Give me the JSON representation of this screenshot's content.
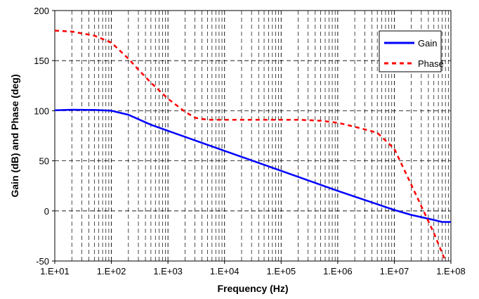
{
  "chart_data": {
    "type": "line",
    "title": "",
    "xlabel": "Frequency (Hz)",
    "ylabel": "Gain (dB) and Phase (deg)",
    "x_scale": "log",
    "xlim": [
      10,
      100000000
    ],
    "ylim": [
      -50,
      200
    ],
    "x_ticks": [
      "1.E+01",
      "1.E+02",
      "1.E+03",
      "1.E+04",
      "1.E+05",
      "1.E+06",
      "1.E+07",
      "1.E+08"
    ],
    "x_tick_values": [
      10,
      100,
      1000,
      10000,
      100000,
      1000000,
      10000000,
      100000000
    ],
    "y_ticks": [
      -50,
      0,
      50,
      100,
      150,
      200
    ],
    "grid": true,
    "legend_position": "top-right",
    "series": [
      {
        "name": "Gain",
        "color": "#0000ff",
        "style": "solid",
        "x": [
          10,
          20,
          50,
          100,
          200,
          500,
          1000,
          10000,
          100000,
          1000000,
          10000000,
          20000000,
          50000000,
          70000000,
          100000000
        ],
        "y": [
          100.5,
          101,
          100.8,
          100,
          96,
          86,
          80,
          60,
          40,
          20,
          1,
          -4,
          -9,
          -11,
          -11
        ]
      },
      {
        "name": "Phase",
        "color": "#ff0000",
        "style": "dashed",
        "x": [
          10,
          20,
          50,
          100,
          200,
          300,
          500,
          1000,
          2000,
          3000,
          5000,
          10000,
          100000,
          200000,
          500000,
          1000000,
          2000000,
          5000000,
          10000000,
          20000000,
          50000000,
          80000000
        ],
        "y": [
          180,
          179,
          175,
          168,
          152,
          141,
          128,
          112,
          99,
          93,
          91,
          91,
          91,
          91,
          90,
          88,
          84,
          78,
          62,
          26,
          -22,
          -50
        ]
      }
    ]
  }
}
